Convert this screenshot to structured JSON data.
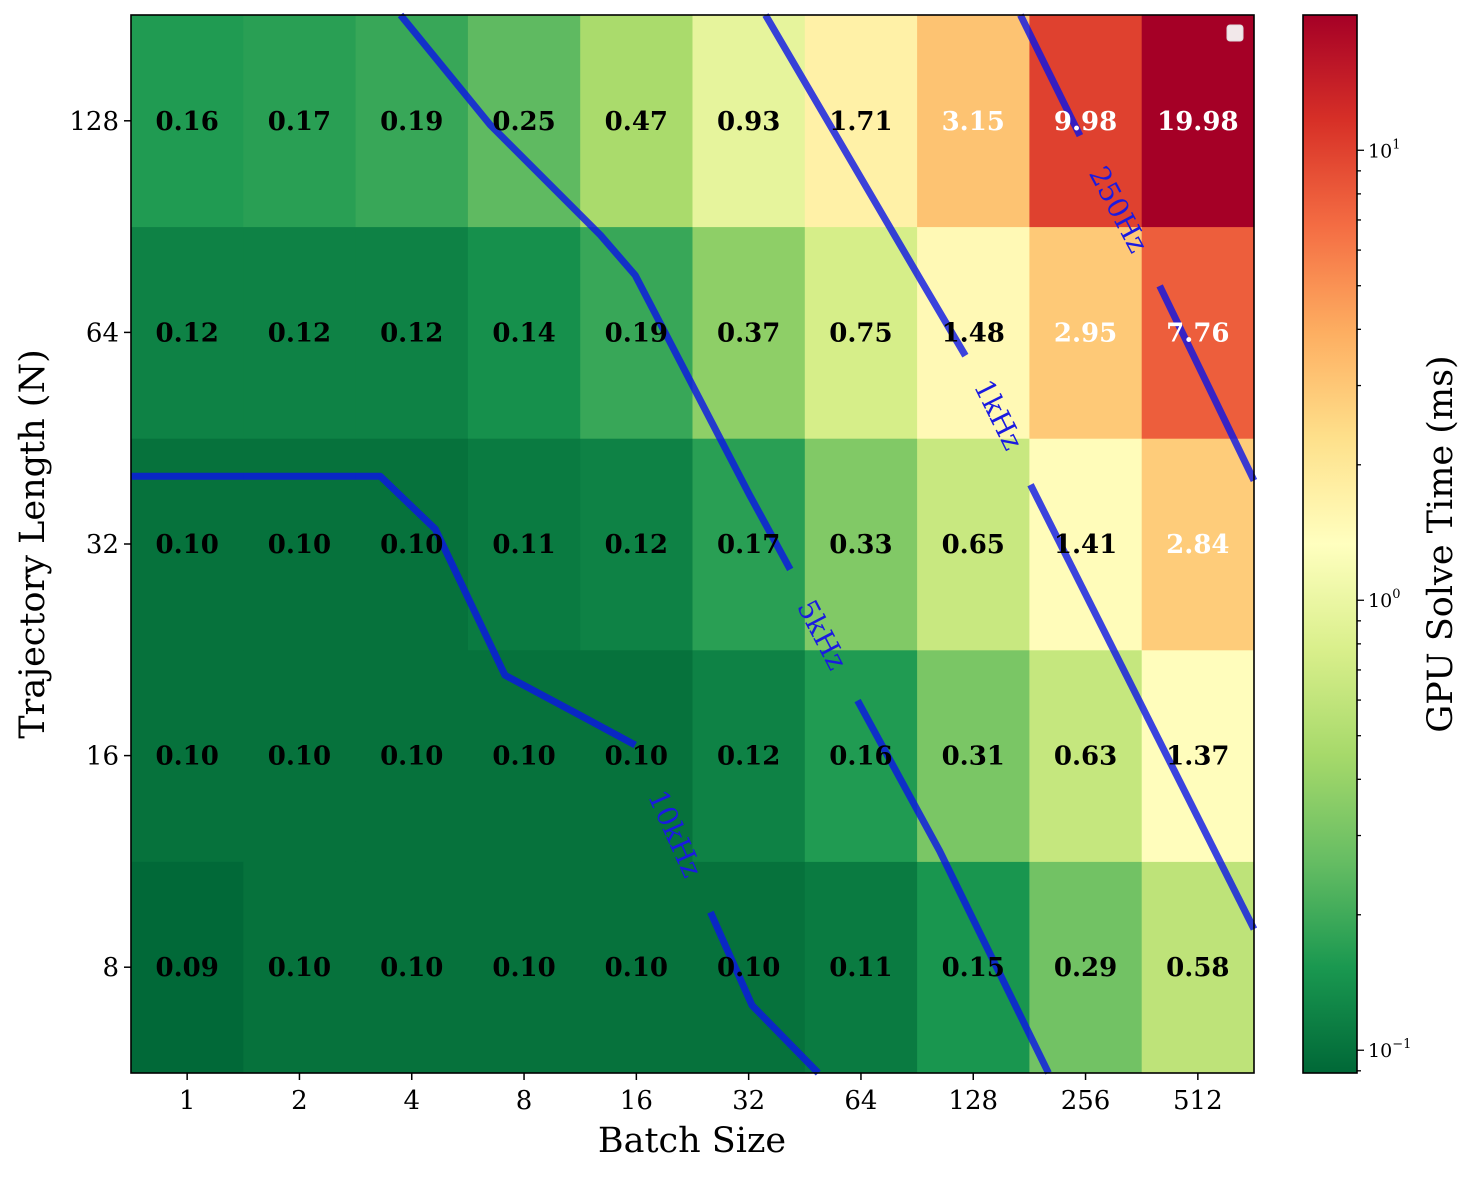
{
  "chart_data": {
    "type": "heatmap",
    "xlabel": "Batch Size",
    "ylabel": "Trajectory Length (N)",
    "colorbar_label": "GPU Solve Time (ms)",
    "colormap": "RdYlGn_r",
    "color_scale": "log",
    "color_range": [
      0.089,
      19.98
    ],
    "colorbar_ticks": [
      "10^-1",
      "10^0",
      "10^1"
    ],
    "colorbar_tick_values": [
      0.1,
      1,
      10
    ],
    "x_categories": [
      "1",
      "2",
      "4",
      "8",
      "16",
      "32",
      "64",
      "128",
      "256",
      "512"
    ],
    "y_categories": [
      "8",
      "16",
      "32",
      "64",
      "128"
    ],
    "values": [
      [
        0.09,
        0.1,
        0.1,
        0.1,
        0.1,
        0.1,
        0.11,
        0.15,
        0.29,
        0.58
      ],
      [
        0.1,
        0.1,
        0.1,
        0.1,
        0.1,
        0.12,
        0.16,
        0.31,
        0.63,
        1.37
      ],
      [
        0.1,
        0.1,
        0.1,
        0.11,
        0.12,
        0.17,
        0.33,
        0.65,
        1.41,
        2.84
      ],
      [
        0.12,
        0.12,
        0.12,
        0.14,
        0.19,
        0.37,
        0.75,
        1.48,
        2.95,
        7.76
      ],
      [
        0.16,
        0.17,
        0.19,
        0.25,
        0.47,
        0.93,
        1.71,
        3.15,
        9.98,
        19.98
      ]
    ],
    "contour_color": "#0a14e6",
    "contours": [
      {
        "label": "10kHz",
        "label_at": [
          4.34,
          0.63
        ],
        "segments": [
          [
            [
              -0.5,
              2.32
            ],
            [
              1.72,
              2.32
            ],
            [
              2.21,
              2.07
            ],
            [
              2.83,
              1.38
            ],
            [
              3.5,
              1.19
            ],
            [
              3.99,
              1.05
            ]
          ],
          [
            [
              4.66,
              0.26
            ],
            [
              5.03,
              -0.18
            ],
            [
              5.62,
              -0.5
            ]
          ]
        ]
      },
      {
        "label": "5kHz",
        "label_at": [
          5.65,
          1.57
        ],
        "segments": [
          [
            [
              1.9,
              4.5
            ],
            [
              2.7,
              3.98
            ],
            [
              3.68,
              3.46
            ],
            [
              3.99,
              3.27
            ],
            [
              5.01,
              2.23
            ],
            [
              5.37,
              1.88
            ]
          ],
          [
            [
              5.97,
              1.26
            ],
            [
              6.7,
              0.55
            ],
            [
              7.67,
              -0.5
            ]
          ]
        ]
      },
      {
        "label": "1kHz",
        "label_at": [
          7.22,
          2.61
        ],
        "segments": [
          [
            [
              5.15,
              4.5
            ],
            [
              6.53,
              3.25
            ],
            [
              6.93,
              2.89
            ]
          ],
          [
            [
              7.51,
              2.28
            ],
            [
              9.5,
              0.18
            ]
          ]
        ]
      },
      {
        "label": "250Hz",
        "label_at": [
          8.29,
          3.58
        ],
        "segments": [
          [
            [
              7.42,
              4.5
            ],
            [
              7.95,
              3.93
            ]
          ],
          [
            [
              8.66,
              3.22
            ],
            [
              9.5,
              2.3
            ]
          ]
        ]
      }
    ],
    "legend": "top-right (empty)"
  }
}
